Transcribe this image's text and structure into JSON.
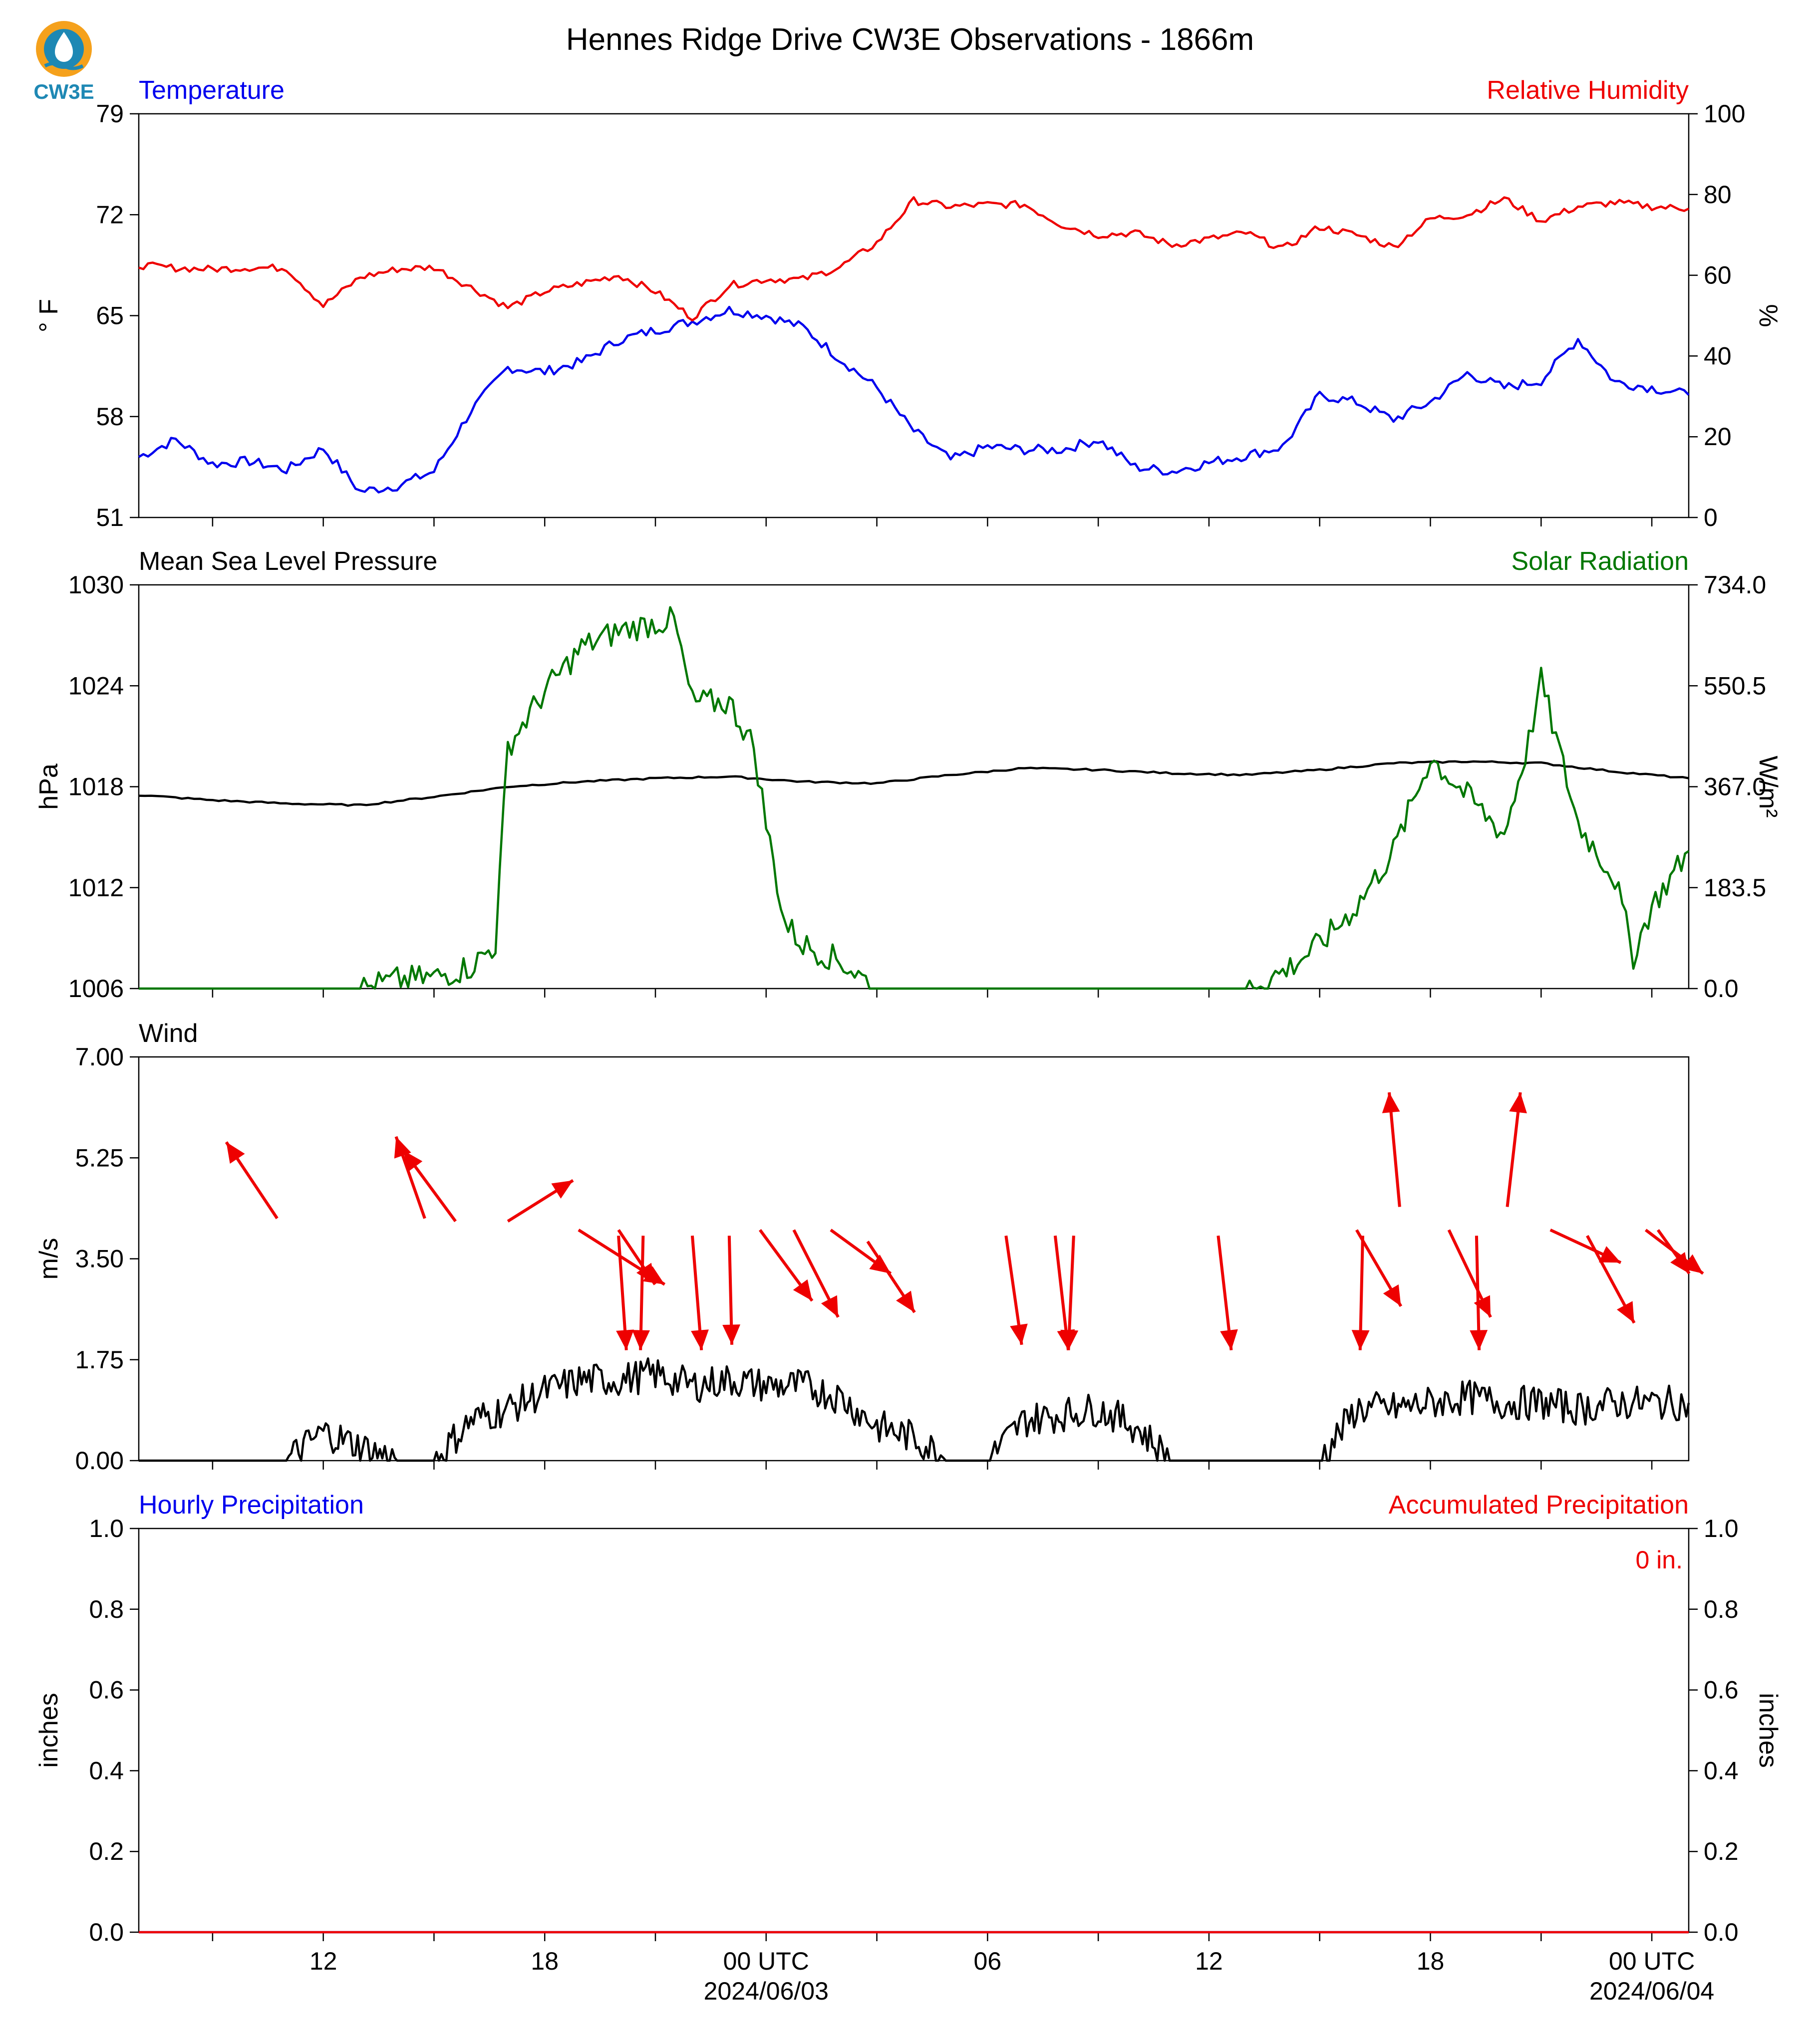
{
  "title": "Hennes Ridge Drive CW3E Observations - 1866m",
  "logo": {
    "text": "CW3E",
    "icon": "cw3e-logo-icon"
  },
  "colors": {
    "temperature": "#0000ee",
    "humidity": "#ee0000",
    "pressure": "#000000",
    "solar": "#007700",
    "wind_speed": "#000000",
    "wind_arrow": "#ee0000",
    "hourly_precip": "#0000ee",
    "accum_precip": "#ee0000",
    "logo_orange": "#f5a11c",
    "logo_teal": "#1e88b4"
  },
  "time_axis": {
    "start": "2024-06-02 07:00 UTC",
    "end": "2024-06-04 01:00 UTC",
    "tick_labels": [
      {
        "label": "12",
        "time": "2024-06-02 12:00"
      },
      {
        "label": "18",
        "time": "2024-06-02 18:00"
      },
      {
        "label": "00 UTC",
        "sub": "2024/06/03",
        "time": "2024-06-03 00:00"
      },
      {
        "label": "06",
        "time": "2024-06-03 06:00"
      },
      {
        "label": "12",
        "time": "2024-06-03 12:00"
      },
      {
        "label": "18",
        "time": "2024-06-03 18:00"
      },
      {
        "label": "00 UTC",
        "sub": "2024/06/04",
        "time": "2024-06-04 00:00"
      }
    ]
  },
  "chart_data": [
    {
      "type": "line",
      "title_left": "Temperature",
      "title_right": "Relative Humidity",
      "ylabel_left": "° F",
      "ylabel_right": "%",
      "ylim_left": [
        51,
        79
      ],
      "ylim_right": [
        0,
        100
      ],
      "yticks_left": [
        "51",
        "58",
        "65",
        "72",
        "79"
      ],
      "yticks_right": [
        "0",
        "20",
        "40",
        "60",
        "80",
        "100"
      ],
      "series": [
        {
          "axis": "left",
          "x": [
            "2024-06-02 07:00",
            "2024-06-02 08:00",
            "2024-06-02 09:00",
            "2024-06-02 10:00",
            "2024-06-02 11:00",
            "2024-06-02 12:00",
            "2024-06-02 13:00",
            "2024-06-02 14:00",
            "2024-06-02 15:00",
            "2024-06-02 16:00",
            "2024-06-02 17:00",
            "2024-06-02 18:00",
            "2024-06-02 19:00",
            "2024-06-02 20:00",
            "2024-06-02 21:00",
            "2024-06-02 22:00",
            "2024-06-02 23:00",
            "2024-06-03 00:00",
            "2024-06-03 01:00",
            "2024-06-03 02:00",
            "2024-06-03 03:00",
            "2024-06-03 04:00",
            "2024-06-03 05:00",
            "2024-06-03 06:00",
            "2024-06-03 07:00",
            "2024-06-03 08:00",
            "2024-06-03 09:00",
            "2024-06-03 10:00",
            "2024-06-03 11:00",
            "2024-06-03 12:00",
            "2024-06-03 13:00",
            "2024-06-03 14:00",
            "2024-06-03 15:00",
            "2024-06-03 16:00",
            "2024-06-03 17:00",
            "2024-06-03 18:00",
            "2024-06-03 19:00",
            "2024-06-03 20:00",
            "2024-06-03 21:00",
            "2024-06-03 22:00",
            "2024-06-03 23:00",
            "2024-06-04 00:00",
            "2024-06-04 01:00"
          ],
          "values": [
            55.2,
            56.4,
            54.7,
            54.9,
            54.3,
            55.8,
            52.8,
            53.2,
            54.2,
            58.4,
            61.4,
            61.1,
            61.8,
            63.3,
            64.0,
            64.6,
            65.4,
            65.0,
            64.2,
            62.0,
            60.0,
            57.0,
            55.0,
            55.9,
            55.7,
            55.7,
            56.4,
            54.5,
            54.2,
            54.8,
            55.3,
            55.9,
            59.5,
            59.0,
            57.8,
            59.0,
            61.0,
            60.0,
            60.5,
            63.4,
            60.4,
            60.0,
            59.5
          ]
        },
        {
          "axis": "right",
          "x": [
            "2024-06-02 07:00",
            "2024-06-02 08:00",
            "2024-06-02 09:00",
            "2024-06-02 10:00",
            "2024-06-02 11:00",
            "2024-06-02 12:00",
            "2024-06-02 13:00",
            "2024-06-02 14:00",
            "2024-06-02 15:00",
            "2024-06-02 16:00",
            "2024-06-02 17:00",
            "2024-06-02 18:00",
            "2024-06-02 19:00",
            "2024-06-02 20:00",
            "2024-06-02 21:00",
            "2024-06-02 22:00",
            "2024-06-02 23:00",
            "2024-06-03 00:00",
            "2024-06-03 01:00",
            "2024-06-03 02:00",
            "2024-06-03 03:00",
            "2024-06-03 04:00",
            "2024-06-03 05:00",
            "2024-06-03 06:00",
            "2024-06-03 07:00",
            "2024-06-03 08:00",
            "2024-06-03 09:00",
            "2024-06-03 10:00",
            "2024-06-03 11:00",
            "2024-06-03 12:00",
            "2024-06-03 13:00",
            "2024-06-03 14:00",
            "2024-06-03 15:00",
            "2024-06-03 16:00",
            "2024-06-03 17:00",
            "2024-06-03 18:00",
            "2024-06-03 19:00",
            "2024-06-03 20:00",
            "2024-06-03 21:00",
            "2024-06-03 22:00",
            "2024-06-03 23:00",
            "2024-06-04 00:00",
            "2024-06-04 01:00"
          ],
          "values": [
            62.5,
            61.8,
            61.5,
            61.9,
            61.8,
            52.5,
            59.5,
            61.5,
            62.0,
            57.0,
            52.0,
            56.0,
            58.0,
            60.0,
            56.0,
            49.5,
            57.5,
            59.0,
            59.0,
            62.0,
            68.0,
            78.5,
            77.0,
            77.5,
            77.5,
            72.5,
            70.0,
            70.5,
            67.5,
            69.0,
            70.5,
            66.5,
            72.0,
            70.0,
            67.0,
            74.0,
            75.0,
            79.0,
            73.5,
            77.0,
            78.0,
            77.0,
            76.5
          ]
        }
      ]
    },
    {
      "type": "line",
      "title_left": "Mean Sea Level Pressure",
      "title_right": "Solar Radiation",
      "ylabel_left": "hPa",
      "ylabel_right": "W/m²",
      "ylim_left": [
        1006,
        1030
      ],
      "ylim_right": [
        0.0,
        734.0
      ],
      "yticks_left": [
        "1006",
        "1012",
        "1018",
        "1024",
        "1030"
      ],
      "yticks_right": [
        "0.0",
        "183.5",
        "367.0",
        "550.5",
        "734.0"
      ],
      "series": [
        {
          "axis": "left",
          "x": [
            "2024-06-02 07:00",
            "2024-06-02 09:00",
            "2024-06-02 11:00",
            "2024-06-02 13:00",
            "2024-06-02 15:00",
            "2024-06-02 17:00",
            "2024-06-02 19:00",
            "2024-06-02 21:00",
            "2024-06-02 23:00",
            "2024-06-03 01:00",
            "2024-06-03 03:00",
            "2024-06-03 05:00",
            "2024-06-03 07:00",
            "2024-06-03 09:00",
            "2024-06-03 11:00",
            "2024-06-03 13:00",
            "2024-06-03 15:00",
            "2024-06-03 17:00",
            "2024-06-03 19:00",
            "2024-06-03 21:00",
            "2024-06-03 23:00",
            "2024-06-04 01:00"
          ],
          "values": [
            1017.5,
            1017.2,
            1017.0,
            1016.9,
            1017.4,
            1018.0,
            1018.3,
            1018.5,
            1018.6,
            1018.3,
            1018.2,
            1018.7,
            1019.1,
            1019.0,
            1018.8,
            1018.7,
            1019.0,
            1019.4,
            1019.5,
            1019.4,
            1018.9,
            1018.5
          ]
        },
        {
          "axis": "right",
          "x": [
            "2024-06-02 07:00",
            "2024-06-02 13:00",
            "2024-06-02 14:00",
            "2024-06-02 15:00",
            "2024-06-02 16:00",
            "2024-06-02 16:40",
            "2024-06-02 17:00",
            "2024-06-02 18:00",
            "2024-06-02 19:00",
            "2024-06-02 20:00",
            "2024-06-02 21:00",
            "2024-06-02 21:30",
            "2024-06-02 22:00",
            "2024-06-02 23:00",
            "2024-06-02 23:40",
            "2024-06-03 00:00",
            "2024-06-03 00:30",
            "2024-06-03 01:00",
            "2024-06-03 02:00",
            "2024-06-03 03:00",
            "2024-06-03 13:00",
            "2024-06-03 14:00",
            "2024-06-03 15:00",
            "2024-06-03 16:00",
            "2024-06-03 17:00",
            "2024-06-03 18:00",
            "2024-06-03 19:00",
            "2024-06-03 20:00",
            "2024-06-03 20:40",
            "2024-06-03 21:00",
            "2024-06-03 22:00",
            "2024-06-03 23:00",
            "2024-06-03 23:30",
            "2024-06-04 00:00",
            "2024-06-04 01:00"
          ],
          "values": [
            0,
            0,
            15,
            20,
            40,
            80,
            440,
            540,
            620,
            650,
            665,
            670,
            520,
            520,
            440,
            300,
            120,
            80,
            50,
            0,
            0,
            30,
            80,
            150,
            250,
            420,
            350,
            280,
            450,
            560,
            300,
            200,
            60,
            150,
            250
          ]
        }
      ]
    },
    {
      "type": "line",
      "title_left": "Wind",
      "ylabel_left": "m/s",
      "ylim_left": [
        0.0,
        7.0
      ],
      "yticks_left": [
        "0.00",
        "1.75",
        "3.50",
        "5.25",
        "7.00"
      ],
      "series": [
        {
          "axis": "left",
          "x": [
            "2024-06-02 07:00",
            "2024-06-02 11:00",
            "2024-06-02 12:00",
            "2024-06-02 14:00",
            "2024-06-02 15:00",
            "2024-06-02 16:00",
            "2024-06-02 17:00",
            "2024-06-02 18:00",
            "2024-06-02 19:00",
            "2024-06-02 20:00",
            "2024-06-02 21:00",
            "2024-06-02 22:00",
            "2024-06-02 23:00",
            "2024-06-03 00:00",
            "2024-06-03 01:00",
            "2024-06-03 02:00",
            "2024-06-03 03:00",
            "2024-06-03 04:00",
            "2024-06-03 05:00",
            "2024-06-03 06:00",
            "2024-06-03 07:00",
            "2024-06-03 08:00",
            "2024-06-03 09:00",
            "2024-06-03 10:00",
            "2024-06-03 11:00",
            "2024-06-03 12:00",
            "2024-06-03 13:00",
            "2024-06-03 14:00",
            "2024-06-03 15:00",
            "2024-06-03 16:00",
            "2024-06-03 17:00",
            "2024-06-03 18:00",
            "2024-06-03 19:00",
            "2024-06-03 20:00",
            "2024-06-03 21:00",
            "2024-06-03 22:00",
            "2024-06-03 23:00",
            "2024-06-04 00:00",
            "2024-06-04 01:00"
          ],
          "values": [
            0.0,
            0.0,
            0.5,
            0.0,
            0.0,
            0.7,
            0.9,
            1.2,
            1.4,
            1.4,
            1.5,
            1.3,
            1.4,
            1.3,
            1.3,
            1.1,
            0.6,
            0.4,
            0.0,
            0.0,
            0.7,
            0.8,
            0.9,
            0.6,
            0.0,
            0.0,
            0.0,
            0.0,
            0.0,
            0.9,
            0.9,
            1.0,
            1.1,
            1.0,
            1.0,
            0.9,
            1.0,
            1.0,
            1.0
          ]
        }
      ],
      "wind_vectors": {
        "description": "red arrows: tail at (time, speed), drawn in direction of flow",
        "arrows": [
          {
            "time": "2024-06-02 10:45",
            "speed": 4.2,
            "dx": -1.95,
            "dy": 1.4
          },
          {
            "time": "2024-06-02 14:45",
            "speed": 4.2,
            "dx": -1.1,
            "dy": 1.5
          },
          {
            "time": "2024-06-02 15:35",
            "speed": 4.15,
            "dx": -2.0,
            "dy": 1.3
          },
          {
            "time": "2024-06-02 17:00",
            "speed": 4.15,
            "dx": 2.5,
            "dy": 0.75
          },
          {
            "time": "2024-06-02 18:55",
            "speed": 4.0,
            "dx": 3.3,
            "dy": -1.0
          },
          {
            "time": "2024-06-02 20:00",
            "speed": 4.0,
            "dx": 1.4,
            "dy": -1.0
          },
          {
            "time": "2024-06-02 20:00",
            "speed": 3.9,
            "dx": 0.3,
            "dy": -2.1
          },
          {
            "time": "2024-06-02 20:40",
            "speed": 3.9,
            "dx": -0.1,
            "dy": -2.1
          },
          {
            "time": "2024-06-02 22:00",
            "speed": 3.9,
            "dx": 0.35,
            "dy": -2.1
          },
          {
            "time": "2024-06-02 23:00",
            "speed": 3.9,
            "dx": 0.1,
            "dy": -2.0
          },
          {
            "time": "2024-06-02 23:50",
            "speed": 4.0,
            "dx": 2.0,
            "dy": -1.3
          },
          {
            "time": "2024-06-03 00:45",
            "speed": 4.0,
            "dx": 1.7,
            "dy": -1.6
          },
          {
            "time": "2024-06-03 01:45",
            "speed": 4.0,
            "dx": 2.3,
            "dy": -0.8
          },
          {
            "time": "2024-06-03 02:45",
            "speed": 3.8,
            "dx": 1.8,
            "dy": -1.3
          },
          {
            "time": "2024-06-03 06:30",
            "speed": 3.9,
            "dx": 0.6,
            "dy": -2.0
          },
          {
            "time": "2024-06-03 08:20",
            "speed": 3.9,
            "dx": -0.2,
            "dy": -2.1
          },
          {
            "time": "2024-06-03 07:50",
            "speed": 3.9,
            "dx": 0.5,
            "dy": -2.1
          },
          {
            "time": "2024-06-03 12:15",
            "speed": 3.9,
            "dx": 0.5,
            "dy": -2.1
          },
          {
            "time": "2024-06-03 16:00",
            "speed": 4.0,
            "dx": 1.7,
            "dy": -1.4
          },
          {
            "time": "2024-06-03 16:10",
            "speed": 3.9,
            "dx": -0.1,
            "dy": -2.1
          },
          {
            "time": "2024-06-03 17:10",
            "speed": 4.4,
            "dx": -0.4,
            "dy": 2.1
          },
          {
            "time": "2024-06-03 18:30",
            "speed": 4.0,
            "dx": 1.6,
            "dy": -1.6
          },
          {
            "time": "2024-06-03 19:15",
            "speed": 3.9,
            "dx": 0.1,
            "dy": -2.1
          },
          {
            "time": "2024-06-03 20:05",
            "speed": 4.4,
            "dx": 0.5,
            "dy": 2.1
          },
          {
            "time": "2024-06-03 21:15",
            "speed": 4.0,
            "dx": 2.7,
            "dy": -0.6
          },
          {
            "time": "2024-06-03 22:15",
            "speed": 3.9,
            "dx": 1.8,
            "dy": -1.6
          },
          {
            "time": "2024-06-03 23:50",
            "speed": 4.0,
            "dx": 2.2,
            "dy": -0.8
          },
          {
            "time": "2024-06-04 00:10",
            "speed": 4.0,
            "dx": 1.2,
            "dy": -0.8
          }
        ]
      }
    },
    {
      "type": "line",
      "title_left": "Hourly Precipitation",
      "title_right": "Accumulated Precipitation",
      "ylabel_left": "inches",
      "ylabel_right": "inches",
      "ylim_left": [
        0.0,
        1.0
      ],
      "ylim_right": [
        0.0,
        1.0
      ],
      "yticks_left": [
        "0.0",
        "0.2",
        "0.4",
        "0.6",
        "0.8",
        "1.0"
      ],
      "yticks_right": [
        "0.0",
        "0.2",
        "0.4",
        "0.6",
        "0.8",
        "1.0"
      ],
      "annotation": "0 in.",
      "series": [
        {
          "axis": "left",
          "x": [
            "2024-06-02 07:00",
            "2024-06-04 01:00"
          ],
          "values": [
            0.0,
            0.0
          ]
        },
        {
          "axis": "right",
          "x": [
            "2024-06-02 07:00",
            "2024-06-04 01:00"
          ],
          "values": [
            0.0,
            0.0
          ]
        }
      ]
    }
  ]
}
